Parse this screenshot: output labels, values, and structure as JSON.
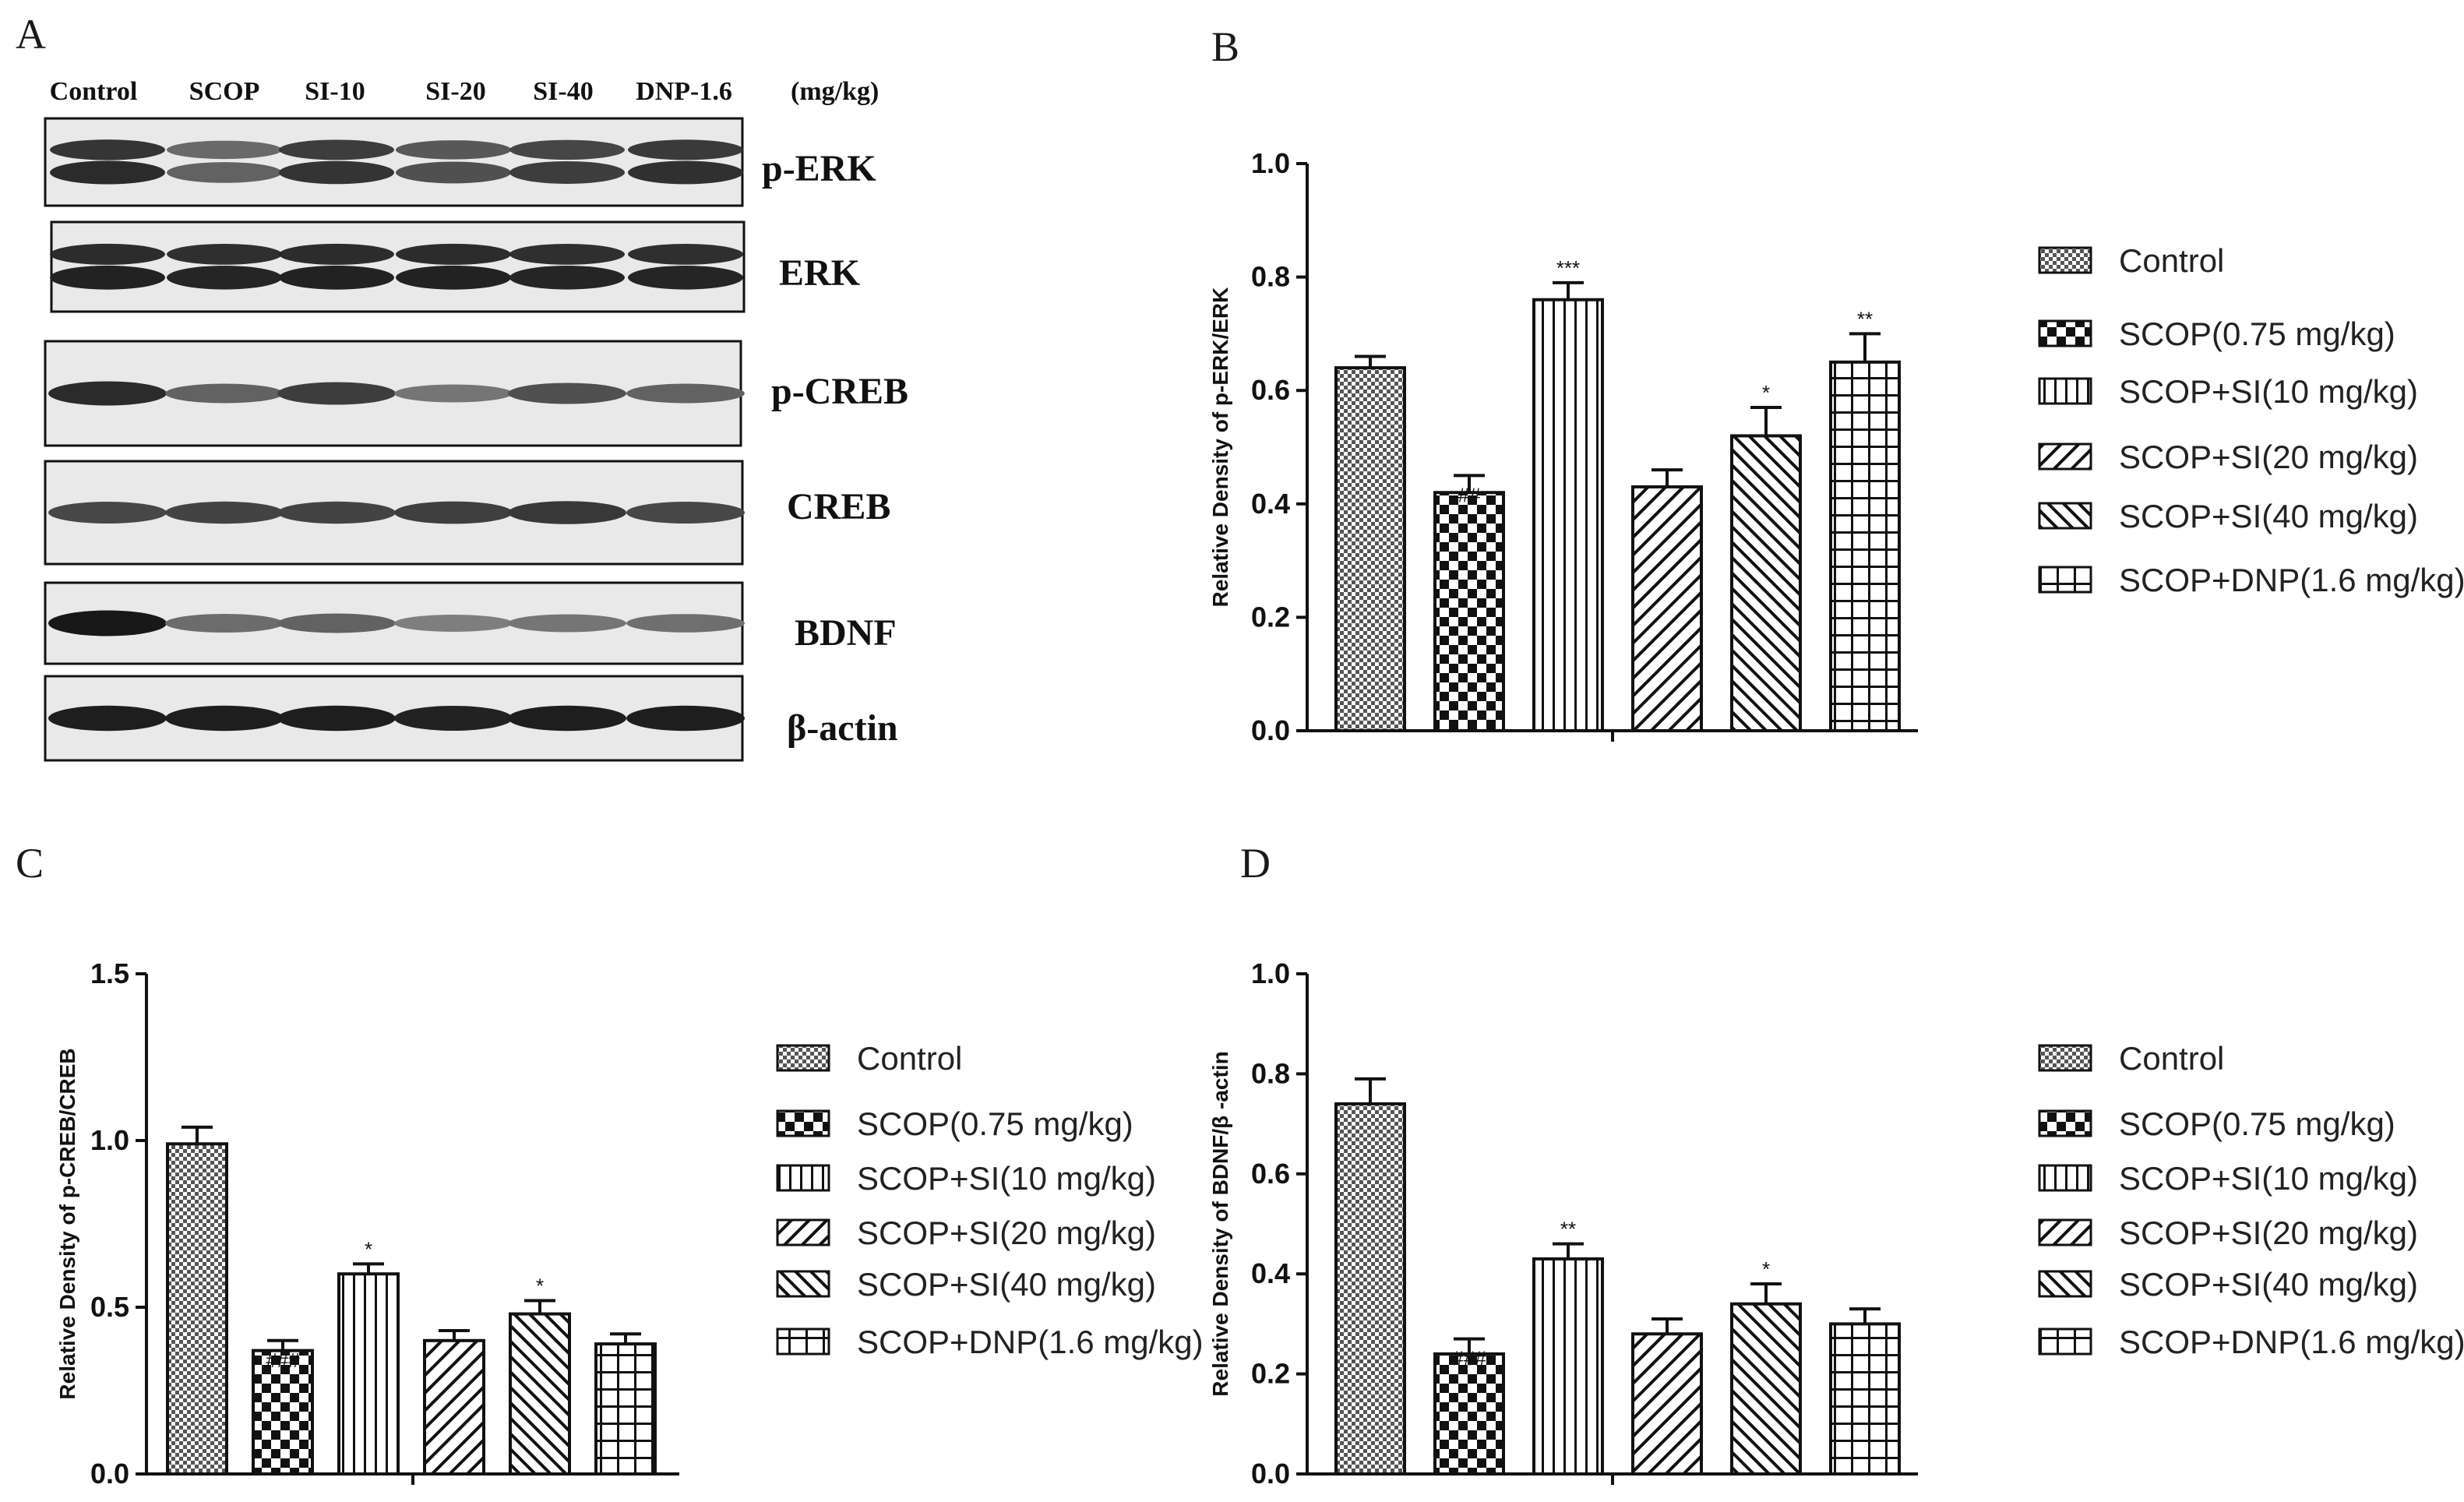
{
  "panel_letters": {
    "a": "A",
    "b": "B",
    "c": "C",
    "d": "D"
  },
  "blot": {
    "lanes": [
      "Control",
      "SCOP",
      "SI-10",
      "SI-20",
      "SI-40",
      "DNP-1.6"
    ],
    "unit": "(mg/kg)",
    "proteins": [
      {
        "name": "p-ERK",
        "intensity": [
          0.85,
          0.55,
          0.8,
          0.65,
          0.75,
          0.82
        ],
        "double_band": true
      },
      {
        "name": "ERK",
        "intensity": [
          0.9,
          0.88,
          0.9,
          0.9,
          0.88,
          0.88
        ],
        "double_band": true
      },
      {
        "name": "p-CREB",
        "intensity": [
          0.85,
          0.55,
          0.75,
          0.45,
          0.65,
          0.55
        ],
        "double_band": false
      },
      {
        "name": "CREB",
        "intensity": [
          0.7,
          0.72,
          0.72,
          0.74,
          0.78,
          0.7
        ],
        "double_band": false
      },
      {
        "name": "BDNF",
        "intensity": [
          0.95,
          0.5,
          0.55,
          0.4,
          0.45,
          0.48
        ],
        "double_band": false
      },
      {
        "name": "β-actin",
        "intensity": [
          0.92,
          0.92,
          0.92,
          0.9,
          0.92,
          0.92
        ],
        "double_band": false
      }
    ]
  },
  "legend_entries": [
    "Control",
    "SCOP(0.75 mg/kg)",
    "SCOP+SI(10 mg/kg)",
    "SCOP+SI(20 mg/kg)",
    "SCOP+SI(40 mg/kg)",
    "SCOP+DNP(1.6 mg/kg)"
  ],
  "chart_data": [
    {
      "panel": "B",
      "type": "bar",
      "ylabel": "Relative Density of p-ERK/ERK",
      "ylim": [
        0,
        1.0
      ],
      "yticks": [
        "0.0",
        "0.2",
        "0.4",
        "0.6",
        "0.8",
        "1.0"
      ],
      "categories": [
        "Control",
        "SCOP(0.75 mg/kg)",
        "SCOP+SI(10 mg/kg)",
        "SCOP+SI(20 mg/kg)",
        "SCOP+SI(40 mg/kg)",
        "SCOP+DNP(1.6 mg/kg)"
      ],
      "values": [
        0.64,
        0.42,
        0.76,
        0.43,
        0.52,
        0.65
      ],
      "errors": [
        0.02,
        0.03,
        0.03,
        0.03,
        0.05,
        0.05
      ],
      "significance": [
        "",
        "##",
        "***",
        "",
        "*",
        "**"
      ]
    },
    {
      "panel": "C",
      "type": "bar",
      "ylabel": "Relative Density of p-CREB/CREB",
      "ylim": [
        0,
        1.5
      ],
      "yticks": [
        "0.0",
        "0.5",
        "1.0",
        "1.5"
      ],
      "categories": [
        "Control",
        "SCOP(0.75 mg/kg)",
        "SCOP+SI(10 mg/kg)",
        "SCOP+SI(20 mg/kg)",
        "SCOP+SI(40 mg/kg)",
        "SCOP+DNP(1.6 mg/kg)"
      ],
      "values": [
        0.99,
        0.37,
        0.6,
        0.4,
        0.48,
        0.39
      ],
      "errors": [
        0.05,
        0.03,
        0.03,
        0.03,
        0.04,
        0.03
      ],
      "significance": [
        "",
        "###",
        "*",
        "",
        "*",
        ""
      ]
    },
    {
      "panel": "D",
      "type": "bar",
      "ylabel": "Relative Density of BDNF/β -actin",
      "ylim": [
        0,
        1.0
      ],
      "yticks": [
        "0.0",
        "0.2",
        "0.4",
        "0.6",
        "0.8",
        "1.0"
      ],
      "categories": [
        "Control",
        "SCOP(0.75 mg/kg)",
        "SCOP+SI(10 mg/kg)",
        "SCOP+SI(20 mg/kg)",
        "SCOP+SI(40 mg/kg)",
        "SCOP+DNP(1.6 mg/kg)"
      ],
      "values": [
        0.74,
        0.24,
        0.43,
        0.28,
        0.34,
        0.3
      ],
      "errors": [
        0.05,
        0.03,
        0.03,
        0.03,
        0.04,
        0.03
      ],
      "significance": [
        "",
        "###",
        "**",
        "",
        "*",
        ""
      ]
    }
  ]
}
